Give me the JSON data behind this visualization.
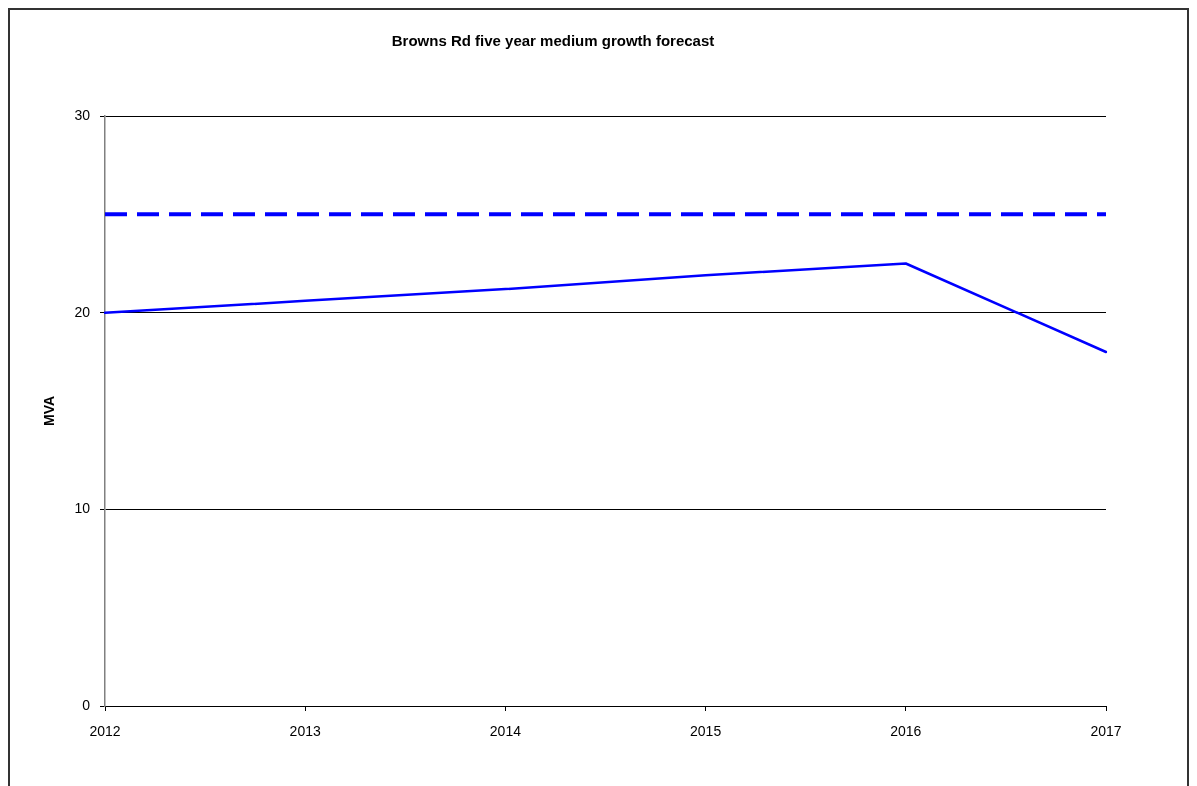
{
  "chart_data": {
    "type": "line",
    "title": "Browns Rd five year medium growth forecast",
    "ylabel": "MVA",
    "categories": [
      "2012",
      "2013",
      "2014",
      "2015",
      "2016",
      "2017"
    ],
    "series": [
      {
        "color": "#0000ff",
        "values": [
          20,
          20.6,
          21.2,
          21.9,
          22.5,
          18
        ]
      }
    ],
    "ylim": [
      0,
      30
    ],
    "yticks": [
      0,
      10,
      20,
      30
    ],
    "grid": "y",
    "marker": "none",
    "line_style": "solid",
    "ref_lines": [
      {
        "axis": "y",
        "value": 25,
        "color": "#0000ff",
        "line_style": "dashed"
      }
    ]
  }
}
